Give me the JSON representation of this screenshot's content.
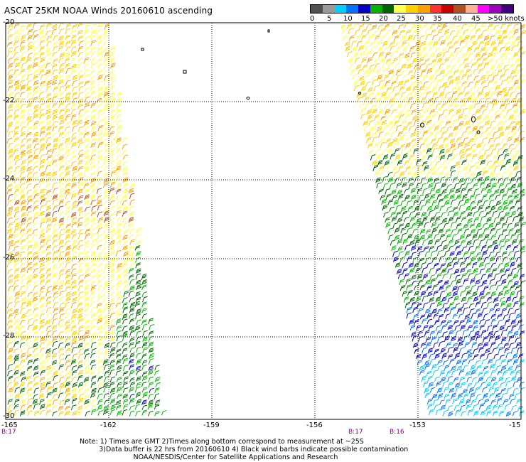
{
  "title": "ASCAT 25KM NOAA Winds 20160610 ascending",
  "legend": {
    "colors": [
      "#505050",
      "#9a9a9a",
      "#00cfff",
      "#0070ff",
      "#0000c8",
      "#00b400",
      "#006400",
      "#ffff50",
      "#ffd000",
      "#ffa000",
      "#ff3030",
      "#c80000",
      "#b05020",
      "#ffb090",
      "#ff00ff",
      "#a000c0",
      "#400080"
    ],
    "labels": [
      "0",
      "5",
      "10",
      "15",
      "20",
      "25",
      "30",
      "35",
      "40",
      "45",
      ">50 knots"
    ]
  },
  "map": {
    "lon_ticks": [
      "-165",
      "-162",
      "-159",
      "-156",
      "-153",
      "-15"
    ],
    "lat_ticks": [
      "-20",
      "-22",
      "-24",
      "-26",
      "-28",
      "-30"
    ],
    "lon_range": [
      -165,
      -150
    ],
    "lat_range": [
      -20,
      -30
    ],
    "gridlines": "dotted"
  },
  "times": [
    "B:17",
    "B:17",
    "B:16"
  ],
  "notes": {
    "line1": "Note: 1) Times are GMT 2)Times along bottom correspond to measurement at ~25S",
    "line2": "3)Data buffer is 22 hrs from 20160610 4) Black wind barbs indicate possible contamination",
    "line3": "NOAA/NESDIS/Center for Satellite Applications and Research"
  }
}
